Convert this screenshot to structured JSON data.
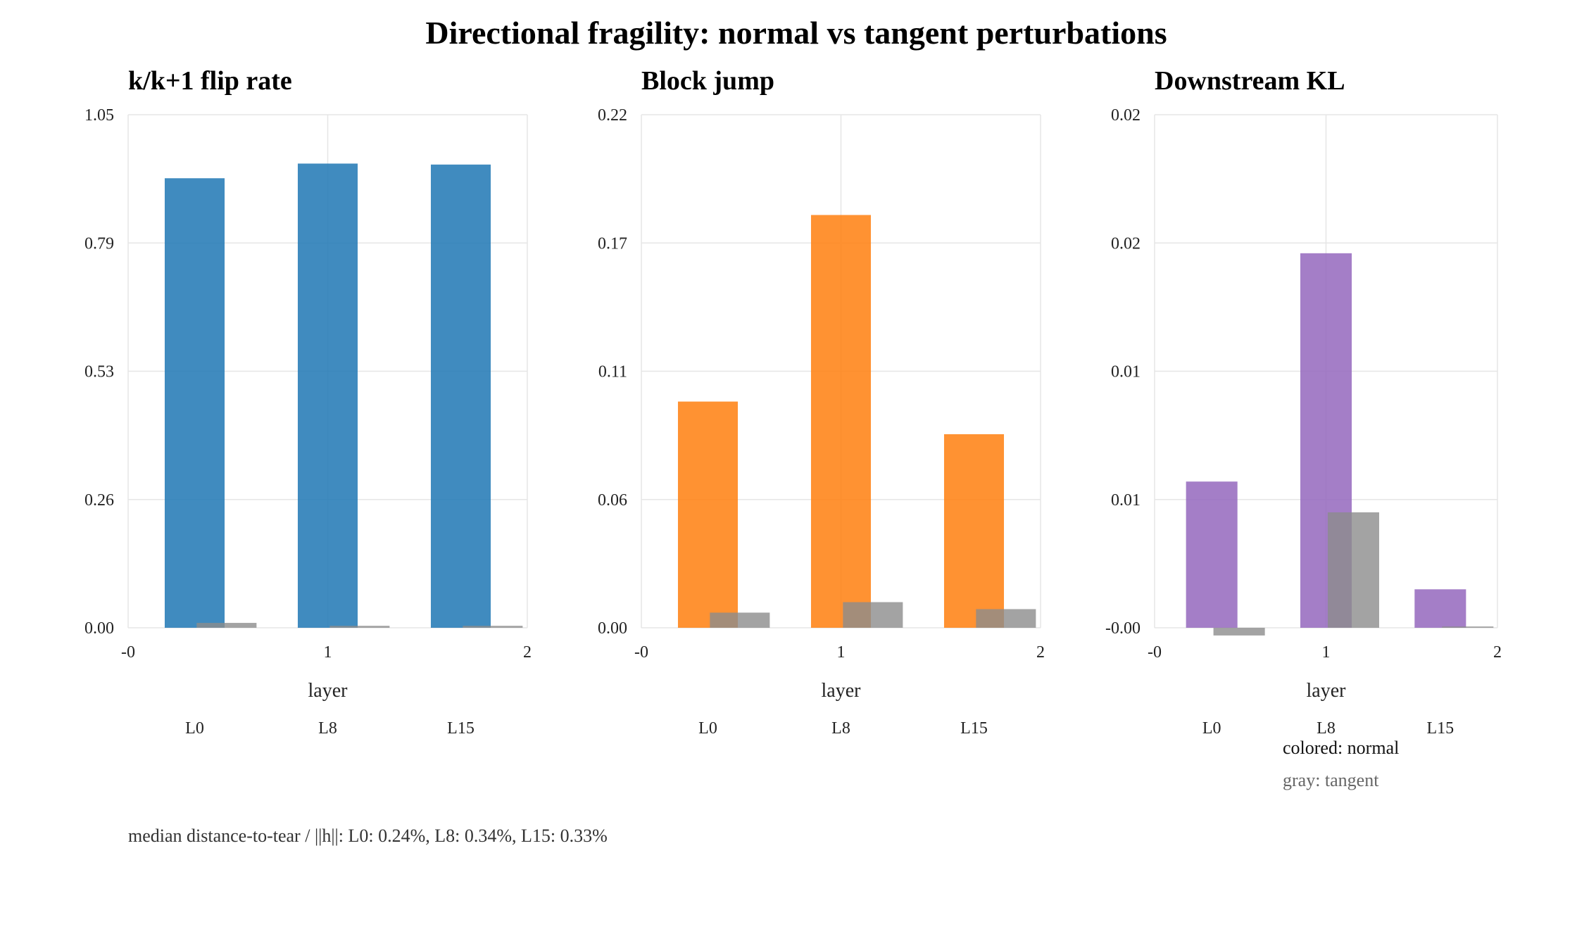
{
  "figure": {
    "title": "Directional fragility: normal vs tangent perturbations",
    "footnote": "median distance-to-tear / ||h||: L0: 0.24%, L8: 0.34%, L15: 0.33%",
    "legend": {
      "normal_label": "colored: normal",
      "tangent_label": "gray: tangent"
    }
  },
  "chart_data": [
    {
      "type": "bar",
      "title": "k/k+1 flip rate",
      "xlabel": "layer",
      "x_tick_labels": [
        "-0",
        "1",
        "2"
      ],
      "categories": [
        "L0",
        "L8",
        "L15"
      ],
      "y_tick_labels": [
        "0.00",
        "0.26",
        "0.53",
        "0.79",
        "1.05"
      ],
      "ylim": [
        0,
        1.05
      ],
      "xlim": [
        0,
        2
      ],
      "grid": true,
      "color": "#1f77b4",
      "series": [
        {
          "name": "normal",
          "values": [
            0.92,
            0.95,
            0.948
          ]
        },
        {
          "name": "tangent",
          "values": [
            0.01,
            0.004,
            0.004
          ]
        }
      ]
    },
    {
      "type": "bar",
      "title": "Block jump",
      "xlabel": "layer",
      "x_tick_labels": [
        "-0",
        "1",
        "2"
      ],
      "categories": [
        "L0",
        "L8",
        "L15"
      ],
      "y_tick_labels": [
        "0.00",
        "0.06",
        "0.11",
        "0.17",
        "0.22"
      ],
      "ylim": [
        0,
        0.22
      ],
      "xlim": [
        0,
        2
      ],
      "grid": true,
      "color": "#ff7f0e",
      "series": [
        {
          "name": "normal",
          "values": [
            0.097,
            0.177,
            0.083
          ]
        },
        {
          "name": "tangent",
          "values": [
            0.0065,
            0.011,
            0.008
          ]
        }
      ]
    },
    {
      "type": "bar",
      "title": "Downstream KL",
      "xlabel": "layer",
      "x_tick_labels": [
        "-0",
        "1",
        "2"
      ],
      "categories": [
        "L0",
        "L8",
        "L15"
      ],
      "y_tick_labels": [
        "-0.00",
        "0.01",
        "0.01",
        "0.02",
        "0.02"
      ],
      "ylim": [
        0,
        0.02
      ],
      "xlim": [
        0,
        2
      ],
      "grid": true,
      "color": "#9467bd",
      "series": [
        {
          "name": "normal",
          "values": [
            0.0057,
            0.0146,
            0.0015
          ]
        },
        {
          "name": "tangent",
          "values": [
            -0.0003,
            0.0045,
            5e-05
          ]
        }
      ]
    }
  ]
}
